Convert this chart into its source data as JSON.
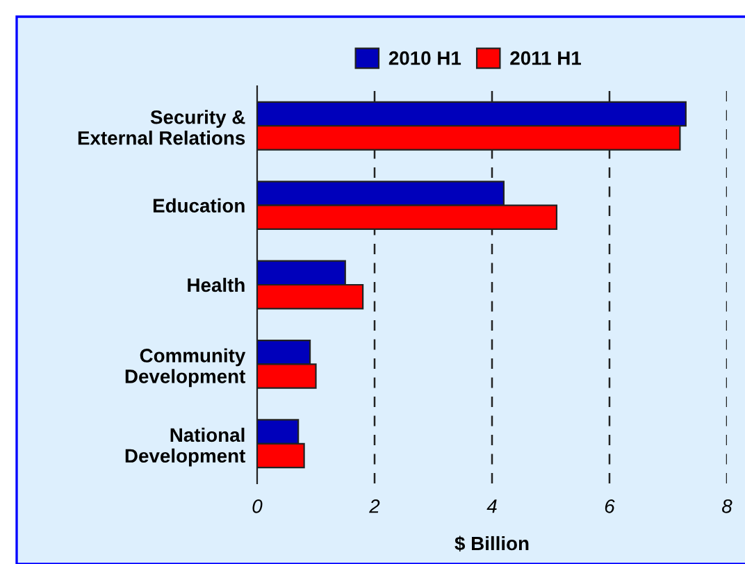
{
  "chart_data": {
    "type": "bar",
    "orientation": "horizontal",
    "xlabel": "$ Billion",
    "categories": [
      "Security &\nExternal Relations",
      "Education",
      "Health",
      "Community\nDevelopment",
      "National\nDevelopment"
    ],
    "series": [
      {
        "name": "2010 H1",
        "color": "#0000bb",
        "values": [
          7.3,
          4.2,
          1.5,
          0.9,
          0.7
        ]
      },
      {
        "name": "2011 H1",
        "color": "#ff0000",
        "values": [
          7.2,
          5.1,
          1.8,
          1.0,
          0.8
        ]
      }
    ],
    "xlim": [
      0,
      8
    ],
    "xticks": [
      0,
      2,
      4,
      6,
      8
    ],
    "grid": "x",
    "legend": "top"
  }
}
